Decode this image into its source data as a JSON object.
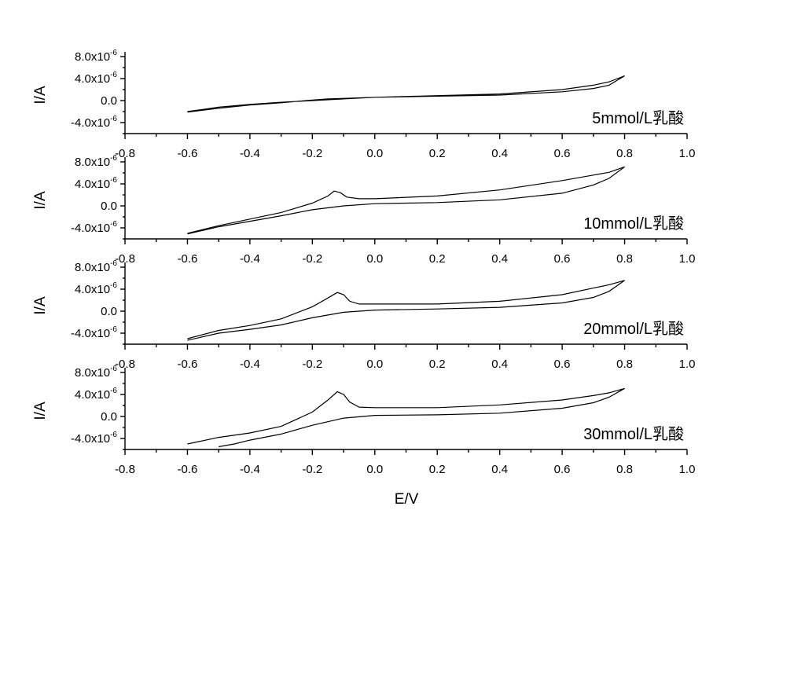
{
  "chart_data": [
    {
      "type": "line",
      "annotation": "5mmol/L乳酸",
      "ylabel": "I/A",
      "xlim": [
        -0.8,
        1.0
      ],
      "ylim": [
        -6.0,
        8.0
      ],
      "y_exponent": "-6",
      "series": [
        {
          "points": [
            [
              -0.6,
              -2.1
            ],
            [
              -0.5,
              -1.4
            ],
            [
              -0.4,
              -0.8
            ],
            [
              -0.3,
              -0.4
            ],
            [
              -0.2,
              0.1
            ],
            [
              -0.15,
              0.3
            ],
            [
              -0.1,
              0.4
            ],
            [
              0.0,
              0.6
            ],
            [
              0.2,
              0.9
            ],
            [
              0.4,
              1.2
            ],
            [
              0.6,
              2.0
            ],
            [
              0.7,
              2.8
            ],
            [
              0.75,
              3.4
            ],
            [
              0.8,
              4.5
            ],
            [
              0.75,
              2.8
            ],
            [
              0.7,
              2.2
            ],
            [
              0.6,
              1.6
            ],
            [
              0.4,
              1.0
            ],
            [
              0.2,
              0.8
            ],
            [
              0.0,
              0.6
            ],
            [
              -0.1,
              0.3
            ],
            [
              -0.2,
              0.0
            ],
            [
              -0.3,
              -0.3
            ],
            [
              -0.4,
              -0.7
            ],
            [
              -0.5,
              -1.2
            ],
            [
              -0.6,
              -2.0
            ]
          ]
        }
      ]
    },
    {
      "type": "line",
      "annotation": "10mmol/L乳酸",
      "ylabel": "I/A",
      "xlim": [
        -0.8,
        1.0
      ],
      "ylim": [
        -6.0,
        8.0
      ],
      "y_exponent": "-6",
      "series": [
        {
          "points": [
            [
              -0.6,
              -5.0
            ],
            [
              -0.5,
              -3.6
            ],
            [
              -0.4,
              -2.4
            ],
            [
              -0.3,
              -1.2
            ],
            [
              -0.2,
              0.5
            ],
            [
              -0.15,
              1.8
            ],
            [
              -0.13,
              2.7
            ],
            [
              -0.11,
              2.4
            ],
            [
              -0.09,
              1.6
            ],
            [
              -0.05,
              1.3
            ],
            [
              0.0,
              1.3
            ],
            [
              0.2,
              1.8
            ],
            [
              0.4,
              2.9
            ],
            [
              0.6,
              4.6
            ],
            [
              0.7,
              5.6
            ],
            [
              0.75,
              6.1
            ],
            [
              0.8,
              7.1
            ],
            [
              0.75,
              5.0
            ],
            [
              0.7,
              3.8
            ],
            [
              0.6,
              2.3
            ],
            [
              0.4,
              1.1
            ],
            [
              0.2,
              0.6
            ],
            [
              0.0,
              0.4
            ],
            [
              -0.1,
              0.0
            ],
            [
              -0.2,
              -0.7
            ],
            [
              -0.3,
              -1.8
            ],
            [
              -0.4,
              -2.8
            ],
            [
              -0.5,
              -3.8
            ],
            [
              -0.6,
              -5.1
            ]
          ]
        }
      ]
    },
    {
      "type": "line",
      "annotation": "20mmol/L乳酸",
      "ylabel": "I/A",
      "xlim": [
        -0.8,
        1.0
      ],
      "ylim": [
        -6.0,
        8.0
      ],
      "y_exponent": "-6",
      "series": [
        {
          "points": [
            [
              -0.6,
              -5.0
            ],
            [
              -0.5,
              -3.5
            ],
            [
              -0.4,
              -2.6
            ],
            [
              -0.3,
              -1.4
            ],
            [
              -0.2,
              0.8
            ],
            [
              -0.15,
              2.4
            ],
            [
              -0.12,
              3.4
            ],
            [
              -0.1,
              3.0
            ],
            [
              -0.08,
              1.8
            ],
            [
              -0.05,
              1.3
            ],
            [
              0.0,
              1.3
            ],
            [
              0.2,
              1.3
            ],
            [
              0.4,
              1.8
            ],
            [
              0.6,
              3.0
            ],
            [
              0.7,
              4.2
            ],
            [
              0.75,
              4.8
            ],
            [
              0.8,
              5.6
            ],
            [
              0.75,
              3.6
            ],
            [
              0.7,
              2.5
            ],
            [
              0.6,
              1.5
            ],
            [
              0.4,
              0.7
            ],
            [
              0.2,
              0.4
            ],
            [
              0.0,
              0.2
            ],
            [
              -0.1,
              -0.2
            ],
            [
              -0.2,
              -1.2
            ],
            [
              -0.3,
              -2.5
            ],
            [
              -0.4,
              -3.3
            ],
            [
              -0.5,
              -4.0
            ],
            [
              -0.6,
              -5.3
            ]
          ]
        }
      ]
    },
    {
      "type": "line",
      "annotation": "30mmol/L乳酸",
      "ylabel": "I/A",
      "xlabel": "E/V",
      "xlim": [
        -0.8,
        1.0
      ],
      "ylim": [
        -6.0,
        8.0
      ],
      "y_exponent": "-6",
      "series": [
        {
          "points": [
            [
              -0.6,
              -5.0
            ],
            [
              -0.5,
              -3.8
            ],
            [
              -0.4,
              -3.0
            ],
            [
              -0.3,
              -1.8
            ],
            [
              -0.2,
              0.8
            ],
            [
              -0.15,
              3.0
            ],
            [
              -0.12,
              4.5
            ],
            [
              -0.1,
              4.0
            ],
            [
              -0.08,
              2.6
            ],
            [
              -0.05,
              1.7
            ],
            [
              0.0,
              1.6
            ],
            [
              0.2,
              1.6
            ],
            [
              0.4,
              2.1
            ],
            [
              0.6,
              3.0
            ],
            [
              0.7,
              3.8
            ],
            [
              0.75,
              4.3
            ],
            [
              0.8,
              5.1
            ],
            [
              0.75,
              3.5
            ],
            [
              0.7,
              2.5
            ],
            [
              0.6,
              1.5
            ],
            [
              0.4,
              0.6
            ],
            [
              0.2,
              0.3
            ],
            [
              0.0,
              0.2
            ],
            [
              -0.1,
              -0.3
            ],
            [
              -0.2,
              -1.6
            ],
            [
              -0.3,
              -3.2
            ],
            [
              -0.4,
              -4.3
            ],
            [
              -0.45,
              -5.0
            ],
            [
              -0.5,
              -5.5
            ]
          ]
        }
      ]
    }
  ],
  "axes": {
    "x_ticks": [
      "-0.8",
      "-0.6",
      "-0.4",
      "-0.2",
      "0.0",
      "0.2",
      "0.4",
      "0.6",
      "0.8",
      "1.0"
    ],
    "x_values": [
      -0.8,
      -0.6,
      -0.4,
      -0.2,
      0.0,
      0.2,
      0.4,
      0.6,
      0.8,
      1.0
    ],
    "y_ticks": [
      {
        "value": 8.0,
        "mantissa": "8.0x10",
        "exp": "-6"
      },
      {
        "value": 4.0,
        "mantissa": "4.0x10",
        "exp": "-6"
      },
      {
        "value": 0.0,
        "mantissa": "0.0",
        "exp": ""
      },
      {
        "value": -4.0,
        "mantissa": "-4.0x10",
        "exp": "-6"
      }
    ]
  }
}
